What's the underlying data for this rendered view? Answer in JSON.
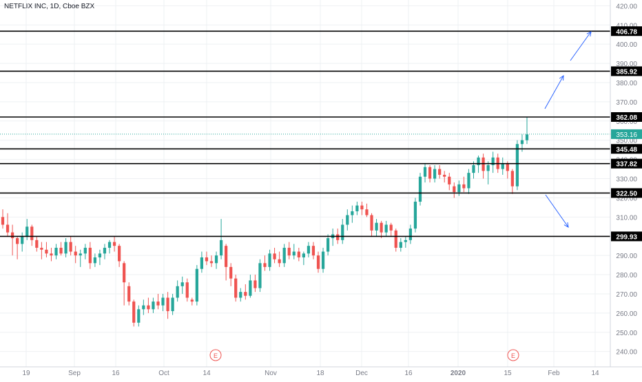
{
  "header": {
    "title": "NETFLIX INC, 1D, Cboe BZX"
  },
  "chart_data": {
    "type": "candlestick",
    "title": "NETFLIX INC, 1D, Cboe BZX",
    "ylim": [
      232,
      423
    ],
    "y_ticks": [
      240,
      250,
      260,
      270,
      280,
      290,
      300,
      310,
      320,
      330,
      340,
      350,
      360,
      370,
      380,
      390,
      400,
      410,
      420
    ],
    "x_ticks": [
      "19",
      "Sep",
      "16",
      "Oct",
      "14",
      "Nov",
      "18",
      "Dec",
      "16",
      "2020",
      "15",
      "Feb",
      "14"
    ],
    "current_price": 353.16,
    "levels": [
      406.78,
      385.92,
      362.08,
      345.48,
      337.82,
      322.5,
      299.93
    ],
    "earnings_markers": [
      "E",
      "E"
    ],
    "up_color": "#26a69a",
    "down_color": "#ef5350",
    "candles": [
      [
        310,
        314,
        304,
        306
      ],
      [
        306,
        312,
        300,
        302
      ],
      [
        302,
        306,
        290,
        299
      ],
      [
        299,
        300,
        288,
        296
      ],
      [
        296,
        302,
        292,
        300
      ],
      [
        300,
        309,
        298,
        305
      ],
      [
        305,
        306,
        295,
        298
      ],
      [
        298,
        300,
        292,
        294
      ],
      [
        294,
        297,
        288,
        293
      ],
      [
        293,
        297,
        289,
        291
      ],
      [
        291,
        294,
        287,
        290
      ],
      [
        290,
        296,
        288,
        294
      ],
      [
        294,
        297,
        290,
        291
      ],
      [
        291,
        299,
        289,
        297
      ],
      [
        297,
        300,
        290,
        292
      ],
      [
        292,
        295,
        286,
        290
      ],
      [
        290,
        293,
        284,
        291
      ],
      [
        291,
        296,
        288,
        294
      ],
      [
        294,
        297,
        283,
        286
      ],
      [
        286,
        291,
        284,
        289
      ],
      [
        289,
        293,
        285,
        291
      ],
      [
        291,
        296,
        288,
        294
      ],
      [
        294,
        298,
        291,
        297
      ],
      [
        297,
        300,
        292,
        295
      ],
      [
        295,
        296,
        284,
        287
      ],
      [
        286,
        287,
        264,
        276
      ],
      [
        274,
        276,
        264,
        266
      ],
      [
        266,
        267,
        253,
        255
      ],
      [
        255,
        264,
        253,
        262
      ],
      [
        262,
        267,
        259,
        264
      ],
      [
        264,
        268,
        260,
        262
      ],
      [
        262,
        268,
        260,
        266
      ],
      [
        266,
        270,
        262,
        264
      ],
      [
        264,
        270,
        261,
        268
      ],
      [
        268,
        271,
        257,
        261
      ],
      [
        261,
        270,
        259,
        268
      ],
      [
        268,
        277,
        266,
        274
      ],
      [
        274,
        279,
        270,
        276
      ],
      [
        276,
        278,
        266,
        268
      ],
      [
        267,
        268,
        264,
        266
      ],
      [
        266,
        285,
        264,
        283
      ],
      [
        283,
        292,
        281,
        289
      ],
      [
        289,
        292,
        285,
        287
      ],
      [
        287,
        290,
        284,
        286
      ],
      [
        286,
        292,
        283,
        290
      ],
      [
        290,
        309,
        288,
        298
      ],
      [
        295,
        296,
        277,
        284
      ],
      [
        284,
        286,
        274,
        278
      ],
      [
        278,
        280,
        266,
        268
      ],
      [
        268,
        273,
        266,
        271
      ],
      [
        271,
        275,
        267,
        269
      ],
      [
        269,
        280,
        268,
        277
      ],
      [
        277,
        280,
        271,
        273
      ],
      [
        273,
        288,
        271,
        286
      ],
      [
        286,
        290,
        282,
        284
      ],
      [
        284,
        293,
        282,
        291
      ],
      [
        291,
        294,
        286,
        288
      ],
      [
        288,
        292,
        284,
        286
      ],
      [
        286,
        296,
        284,
        294
      ],
      [
        294,
        297,
        288,
        290
      ],
      [
        290,
        296,
        288,
        292
      ],
      [
        292,
        294,
        287,
        289
      ],
      [
        289,
        292,
        285,
        291
      ],
      [
        291,
        297,
        289,
        295
      ],
      [
        295,
        297,
        288,
        290
      ],
      [
        290,
        292,
        281,
        283
      ],
      [
        283,
        294,
        281,
        292
      ],
      [
        292,
        301,
        290,
        299
      ],
      [
        299,
        304,
        295,
        301
      ],
      [
        301,
        304,
        296,
        298
      ],
      [
        298,
        309,
        296,
        306
      ],
      [
        306,
        314,
        303,
        311
      ],
      [
        311,
        316,
        307,
        313
      ],
      [
        313,
        318,
        311,
        316
      ],
      [
        316,
        318,
        311,
        314
      ],
      [
        314,
        317,
        310,
        311
      ],
      [
        311,
        312,
        300,
        303
      ],
      [
        303,
        309,
        300,
        307
      ],
      [
        307,
        308,
        299,
        302
      ],
      [
        302,
        308,
        300,
        306
      ],
      [
        306,
        307,
        300,
        303
      ],
      [
        303,
        304,
        292,
        294
      ],
      [
        294,
        299,
        292,
        297
      ],
      [
        297,
        300,
        294,
        298
      ],
      [
        298,
        306,
        296,
        304
      ],
      [
        304,
        320,
        302,
        318
      ],
      [
        318,
        333,
        316,
        331
      ],
      [
        331,
        338,
        328,
        336
      ],
      [
        336,
        337,
        328,
        330
      ],
      [
        330,
        337,
        328,
        335
      ],
      [
        335,
        337,
        330,
        332
      ],
      [
        332,
        334,
        328,
        331
      ],
      [
        331,
        333,
        324,
        327
      ],
      [
        326,
        328,
        320,
        323
      ],
      [
        323,
        329,
        321,
        327
      ],
      [
        327,
        331,
        323,
        325
      ],
      [
        325,
        335,
        322,
        333
      ],
      [
        333,
        339,
        330,
        337
      ],
      [
        337,
        342,
        333,
        341
      ],
      [
        341,
        343,
        330,
        334
      ],
      [
        334,
        339,
        327,
        337
      ],
      [
        337,
        344,
        333,
        341
      ],
      [
        341,
        343,
        333,
        335
      ],
      [
        335,
        341,
        332,
        338
      ],
      [
        338,
        339,
        330,
        334
      ],
      [
        334,
        335,
        322,
        326
      ],
      [
        326,
        350,
        324,
        348
      ],
      [
        348,
        353,
        344,
        350
      ],
      [
        350,
        362,
        348,
        353
      ]
    ]
  }
}
